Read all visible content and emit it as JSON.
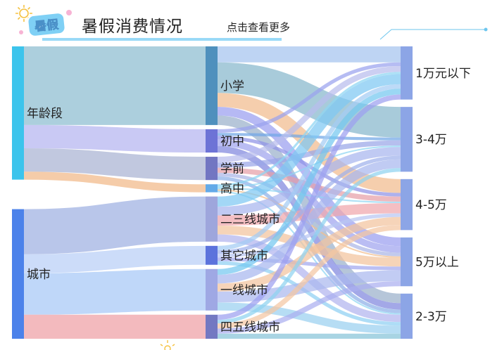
{
  "header": {
    "title": "暑假消费情况",
    "more_link": "点击查看更多",
    "logo_text": "暑假"
  },
  "colors": {
    "header_line": "#6ec6ee",
    "logo_ribbon": "#7fd0f5",
    "logo_accent": "#f7b3d4"
  },
  "chart_data": {
    "type": "sankey",
    "title": "",
    "nodes": [
      {
        "name": "年龄段",
        "color": "#3cc4ec",
        "label_pos": "right"
      },
      {
        "name": "城市",
        "color": "#4c82ea",
        "label_pos": "right"
      },
      {
        "name": "小学",
        "color": "#4f90bd",
        "label_pos": "right"
      },
      {
        "name": "初中",
        "color": "#6d73d6",
        "label_pos": "right"
      },
      {
        "name": "学前",
        "color": "#7276c2",
        "label_pos": "right"
      },
      {
        "name": "高中",
        "color": "#63aae8",
        "label_pos": "right"
      },
      {
        "name": "二三线城市",
        "color": "#9ea6dc",
        "label_pos": "right"
      },
      {
        "name": "其它城市",
        "color": "#5c73dc",
        "label_pos": "right"
      },
      {
        "name": "一线城市",
        "color": "#9fa8e4",
        "label_pos": "right"
      },
      {
        "name": "四五线城市",
        "color": "#7378c2",
        "label_pos": "right"
      },
      {
        "name": "1万元以下",
        "color": "#8ca5e6",
        "label_pos": "right"
      },
      {
        "name": "3-4万",
        "color": "#8ca5e6",
        "label_pos": "right"
      },
      {
        "name": "4-5万",
        "color": "#8ca5e6",
        "label_pos": "right"
      },
      {
        "name": "5万以上",
        "color": "#8ca5e6",
        "label_pos": "right"
      },
      {
        "name": "2-3万",
        "color": "#8ca5e6",
        "label_pos": "right"
      }
    ],
    "links": [
      {
        "source": "年龄段",
        "target": "小学",
        "value": 108,
        "color": "#8cbcd0"
      },
      {
        "source": "年龄段",
        "target": "初中",
        "value": 32,
        "color": "#b4b4f0"
      },
      {
        "source": "年龄段",
        "target": "学前",
        "value": 32,
        "color": "#a9b3d3"
      },
      {
        "source": "年龄段",
        "target": "高中",
        "value": 11,
        "color": "#f1b888"
      },
      {
        "source": "城市",
        "target": "二三线城市",
        "value": 62,
        "color": "#9eb0e2"
      },
      {
        "source": "城市",
        "target": "其它城市",
        "value": 26,
        "color": "#b9cff6"
      },
      {
        "source": "城市",
        "target": "一线城市",
        "value": 57,
        "color": "#a6c8f6"
      },
      {
        "source": "城市",
        "target": "四五线城市",
        "value": 33,
        "color": "#ee9fa5"
      },
      {
        "source": "小学",
        "target": "1万元以下",
        "value": 22,
        "color": "#a5c4ef"
      },
      {
        "source": "小学",
        "target": "3-4万",
        "value": 42,
        "color": "#86b7cc"
      },
      {
        "source": "小学",
        "target": "4-5万",
        "value": 19,
        "color": "#f1bb8d"
      },
      {
        "source": "小学",
        "target": "5万以上",
        "value": 12,
        "color": "#9a9ef0"
      },
      {
        "source": "小学",
        "target": "2-3万",
        "value": 13,
        "color": "#9ab0ca"
      },
      {
        "source": "初中",
        "target": "1万元以下",
        "value": 5,
        "color": "#9aa2ee"
      },
      {
        "source": "初中",
        "target": "3-4万",
        "value": 4,
        "color": "#70a6e6"
      },
      {
        "source": "初中",
        "target": "4-5万",
        "value": 5,
        "color": "#8f93e6"
      },
      {
        "source": "初中",
        "target": "5万以上",
        "value": 9,
        "color": "#a0a4ee"
      },
      {
        "source": "初中",
        "target": "2-3万",
        "value": 9,
        "color": "#7f86de"
      },
      {
        "source": "学前",
        "target": "1万元以下",
        "value": 8,
        "color": "#b8bced"
      },
      {
        "source": "学前",
        "target": "3-4万",
        "value": 7,
        "color": "#9aa6e8"
      },
      {
        "source": "学前",
        "target": "4-5万",
        "value": 7,
        "color": "#e69fa8"
      },
      {
        "source": "学前",
        "target": "5万以上",
        "value": 5,
        "color": "#aab6e6"
      },
      {
        "source": "学前",
        "target": "2-3万",
        "value": 5,
        "color": "#8eb0e8"
      },
      {
        "source": "高中",
        "target": "1万元以下",
        "value": 3,
        "color": "#8ed6f2"
      },
      {
        "source": "高中",
        "target": "3-4万",
        "value": 2,
        "color": "#8ed6f2"
      },
      {
        "source": "高中",
        "target": "4-5万",
        "value": 2,
        "color": "#8ed6f2"
      },
      {
        "source": "高中",
        "target": "5万以上",
        "value": 2,
        "color": "#f3be8c"
      },
      {
        "source": "高中",
        "target": "2-3万",
        "value": 2,
        "color": "#8ed6f2"
      },
      {
        "source": "二三线城市",
        "target": "1万元以下",
        "value": 14,
        "color": "#7ec8f2"
      },
      {
        "source": "二三线城市",
        "target": "3-4万",
        "value": 12,
        "color": "#a8b6ee"
      },
      {
        "source": "二三线城市",
        "target": "4-5万",
        "value": 14,
        "color": "#f0a6ac"
      },
      {
        "source": "二三线城市",
        "target": "5万以上",
        "value": 12,
        "color": "#f2c39c"
      },
      {
        "source": "二三线城市",
        "target": "2-3万",
        "value": 10,
        "color": "#b2b4ee"
      },
      {
        "source": "其它城市",
        "target": "1万元以下",
        "value": 6,
        "color": "#a4ccf4"
      },
      {
        "source": "其它城市",
        "target": "3-4万",
        "value": 5,
        "color": "#9fb2ec"
      },
      {
        "source": "其它城市",
        "target": "4-5万",
        "value": 5,
        "color": "#b9c6f2"
      },
      {
        "source": "其它城市",
        "target": "5万以上",
        "value": 5,
        "color": "#a2a8ee"
      },
      {
        "source": "其它城市",
        "target": "2-3万",
        "value": 5,
        "color": "#8fd0f2"
      },
      {
        "source": "一线城市",
        "target": "1万元以下",
        "value": 8,
        "color": "#74c8f0"
      },
      {
        "source": "一线城市",
        "target": "3-4万",
        "value": 12,
        "color": "#a7b7ee"
      },
      {
        "source": "一线城市",
        "target": "4-5万",
        "value": 11,
        "color": "#f3c39e"
      },
      {
        "source": "一线城市",
        "target": "5万以上",
        "value": 15,
        "color": "#aab9ef"
      },
      {
        "source": "一线城市",
        "target": "2-3万",
        "value": 11,
        "color": "#9ad0f0"
      },
      {
        "source": "四五线城市",
        "target": "1万元以下",
        "value": 7,
        "color": "#9c9ff0"
      },
      {
        "source": "四五线城市",
        "target": "3-4万",
        "value": 5,
        "color": "#8fd2f0"
      },
      {
        "source": "四五线城市",
        "target": "4-5万",
        "value": 7,
        "color": "#f4c6a2"
      },
      {
        "source": "四五线城市",
        "target": "5万以上",
        "value": 7,
        "color": "#aaaef0"
      },
      {
        "source": "四五线城市",
        "target": "2-3万",
        "value": 7,
        "color": "#86c4d8"
      }
    ]
  }
}
